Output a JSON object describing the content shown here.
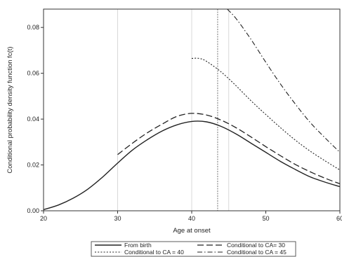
{
  "chart_data": {
    "type": "line",
    "title": "",
    "xlabel": "Age at onset",
    "ylabel": "Conditional probability density function fc(t)",
    "xlim": [
      20,
      60
    ],
    "ylim": [
      0,
      0.088
    ],
    "xticks": [
      20,
      30,
      40,
      50,
      60
    ],
    "xtick_labels": [
      "20",
      "30",
      "40",
      "50",
      "60"
    ],
    "yticks": [
      0,
      0.02,
      0.04,
      0.06,
      0.08
    ],
    "ytick_labels": [
      "0.00",
      "0.02",
      "0.04",
      "0.06",
      "0.08"
    ],
    "grid": false,
    "legend_position": "bottom",
    "vlines": [
      30,
      40,
      43.5,
      45
    ],
    "series": [
      {
        "name": "From birth",
        "style": "solid",
        "x": [
          20,
          22,
          24,
          26,
          28,
          30,
          32,
          34,
          36,
          38,
          40,
          42,
          44,
          46,
          48,
          50,
          52,
          54,
          56,
          58,
          60
        ],
        "y": [
          0.0005,
          0.0025,
          0.0055,
          0.0095,
          0.0148,
          0.0208,
          0.0265,
          0.031,
          0.0348,
          0.0375,
          0.039,
          0.0388,
          0.0368,
          0.0335,
          0.0295,
          0.0255,
          0.0215,
          0.018,
          0.0148,
          0.0125,
          0.0105
        ]
      },
      {
        "name": "Conditional to CA= 30",
        "style": "dashed",
        "x": [
          30,
          32,
          34,
          36,
          38,
          40,
          42,
          44,
          46,
          48,
          50,
          52,
          54,
          56,
          58,
          60
        ],
        "y": [
          0.0245,
          0.0295,
          0.034,
          0.0378,
          0.0412,
          0.0425,
          0.0418,
          0.0395,
          0.0362,
          0.0322,
          0.028,
          0.024,
          0.0202,
          0.017,
          0.0142,
          0.0118
        ]
      },
      {
        "name": "Conditional to CA = 40",
        "style": "dotted",
        "x": [
          40,
          41,
          42,
          44,
          46,
          48,
          50,
          52,
          54,
          56,
          58,
          60
        ],
        "y": [
          0.0665,
          0.0665,
          0.0652,
          0.0605,
          0.0545,
          0.048,
          0.042,
          0.0362,
          0.0308,
          0.026,
          0.0218,
          0.0178
        ]
      },
      {
        "name": "Conditional to CA = 45",
        "style": "dashdot",
        "x": [
          44.8,
          46,
          48,
          50,
          52,
          54,
          56,
          58,
          60
        ],
        "y": [
          0.088,
          0.0838,
          0.0748,
          0.0648,
          0.0552,
          0.0465,
          0.0385,
          0.0318,
          0.0255
        ]
      }
    ]
  }
}
